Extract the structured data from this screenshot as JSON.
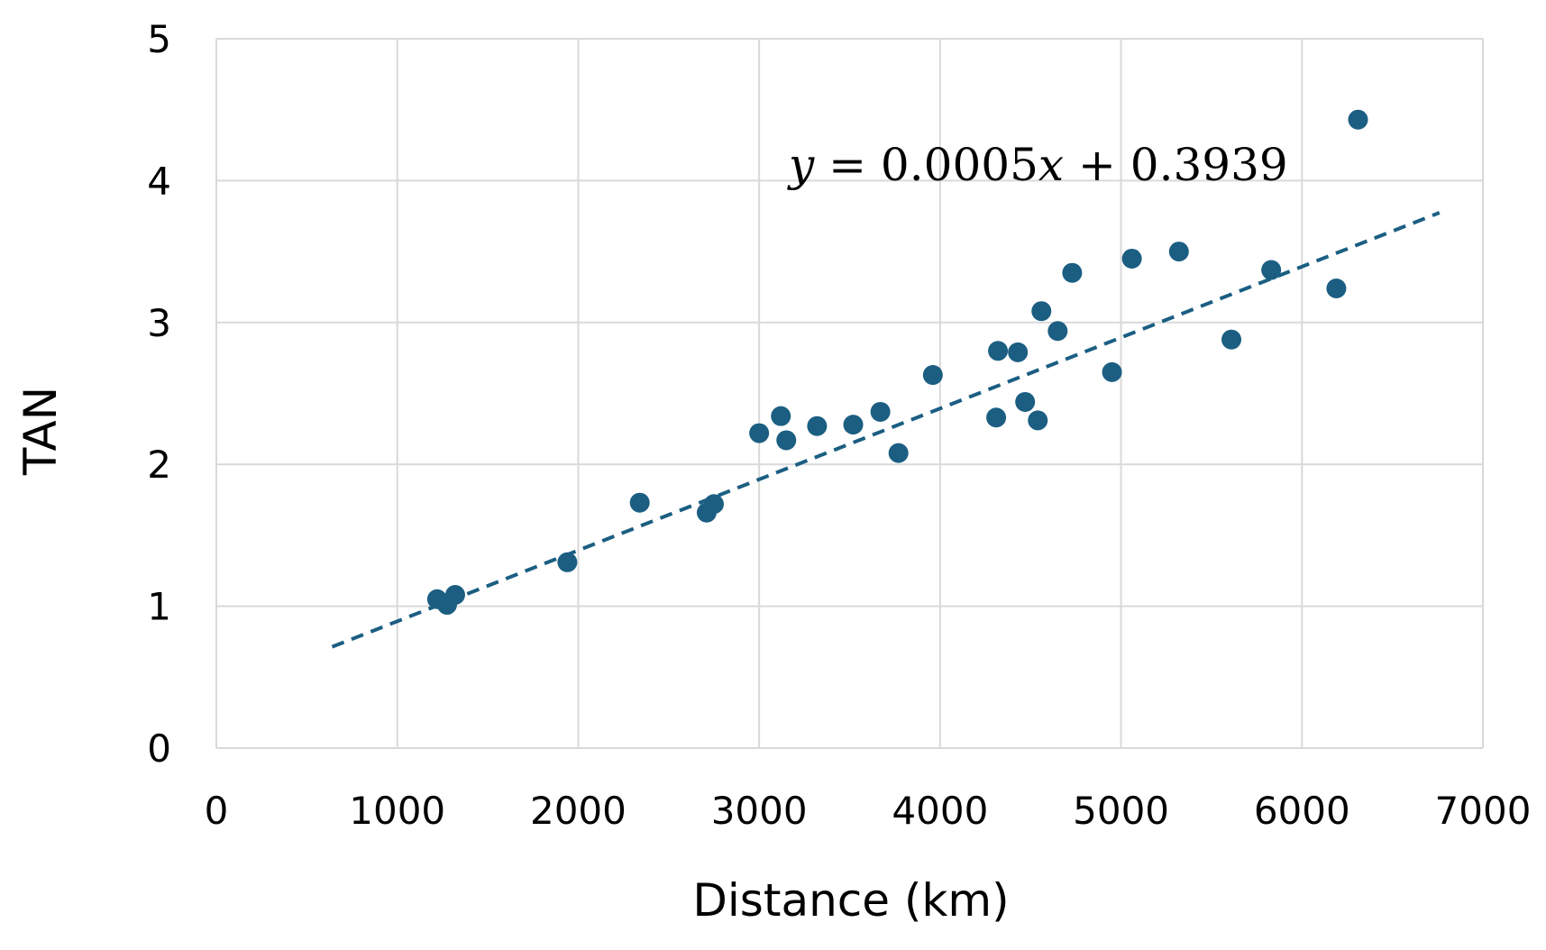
{
  "colors": {
    "point": "#1b5e82",
    "trendline": "#1b5e82",
    "grid": "#d9d9d9",
    "background": "#ffffff",
    "text": "#000000"
  },
  "chart_data": {
    "type": "scatter",
    "title": "",
    "xlabel": "Distance (km)",
    "ylabel": "TAN",
    "xlim": [
      0,
      7000
    ],
    "ylim": [
      0,
      5
    ],
    "x_ticks": [
      0,
      1000,
      2000,
      3000,
      4000,
      5000,
      6000,
      7000
    ],
    "y_ticks": [
      0,
      1,
      2,
      3,
      4,
      5
    ],
    "x_tick_labels": [
      "0",
      "1000",
      "2000",
      "3000",
      "4000",
      "5000",
      "6000",
      "7000"
    ],
    "y_tick_labels": [
      "0",
      "1",
      "2",
      "3",
      "4",
      "5"
    ],
    "grid": true,
    "legend": "none",
    "points": [
      {
        "x": 1220,
        "y": 1.05
      },
      {
        "x": 1275,
        "y": 1.01
      },
      {
        "x": 1320,
        "y": 1.08
      },
      {
        "x": 1940,
        "y": 1.31
      },
      {
        "x": 2340,
        "y": 1.73
      },
      {
        "x": 2710,
        "y": 1.66
      },
      {
        "x": 2750,
        "y": 1.72
      },
      {
        "x": 3000,
        "y": 2.22
      },
      {
        "x": 3120,
        "y": 2.34
      },
      {
        "x": 3150,
        "y": 2.17
      },
      {
        "x": 3320,
        "y": 2.27
      },
      {
        "x": 3520,
        "y": 2.28
      },
      {
        "x": 3670,
        "y": 2.37
      },
      {
        "x": 3770,
        "y": 2.08
      },
      {
        "x": 3960,
        "y": 2.63
      },
      {
        "x": 4310,
        "y": 2.33
      },
      {
        "x": 4320,
        "y": 2.8
      },
      {
        "x": 4430,
        "y": 2.79
      },
      {
        "x": 4470,
        "y": 2.44
      },
      {
        "x": 4540,
        "y": 2.31
      },
      {
        "x": 4560,
        "y": 3.08
      },
      {
        "x": 4650,
        "y": 2.94
      },
      {
        "x": 4730,
        "y": 3.35
      },
      {
        "x": 4950,
        "y": 2.65
      },
      {
        "x": 5060,
        "y": 3.45
      },
      {
        "x": 5320,
        "y": 3.5
      },
      {
        "x": 5610,
        "y": 2.88
      },
      {
        "x": 5830,
        "y": 3.37
      },
      {
        "x": 6190,
        "y": 3.24
      },
      {
        "x": 6310,
        "y": 4.43
      }
    ],
    "trendline": {
      "type": "linear",
      "style": "dashed",
      "slope": 0.0005,
      "intercept": 0.3939,
      "x_range": [
        640,
        6760
      ],
      "equation_text": {
        "y": "y",
        "eq": " = 0.0005",
        "x": "x",
        "rest": " + 0.3939"
      }
    }
  }
}
